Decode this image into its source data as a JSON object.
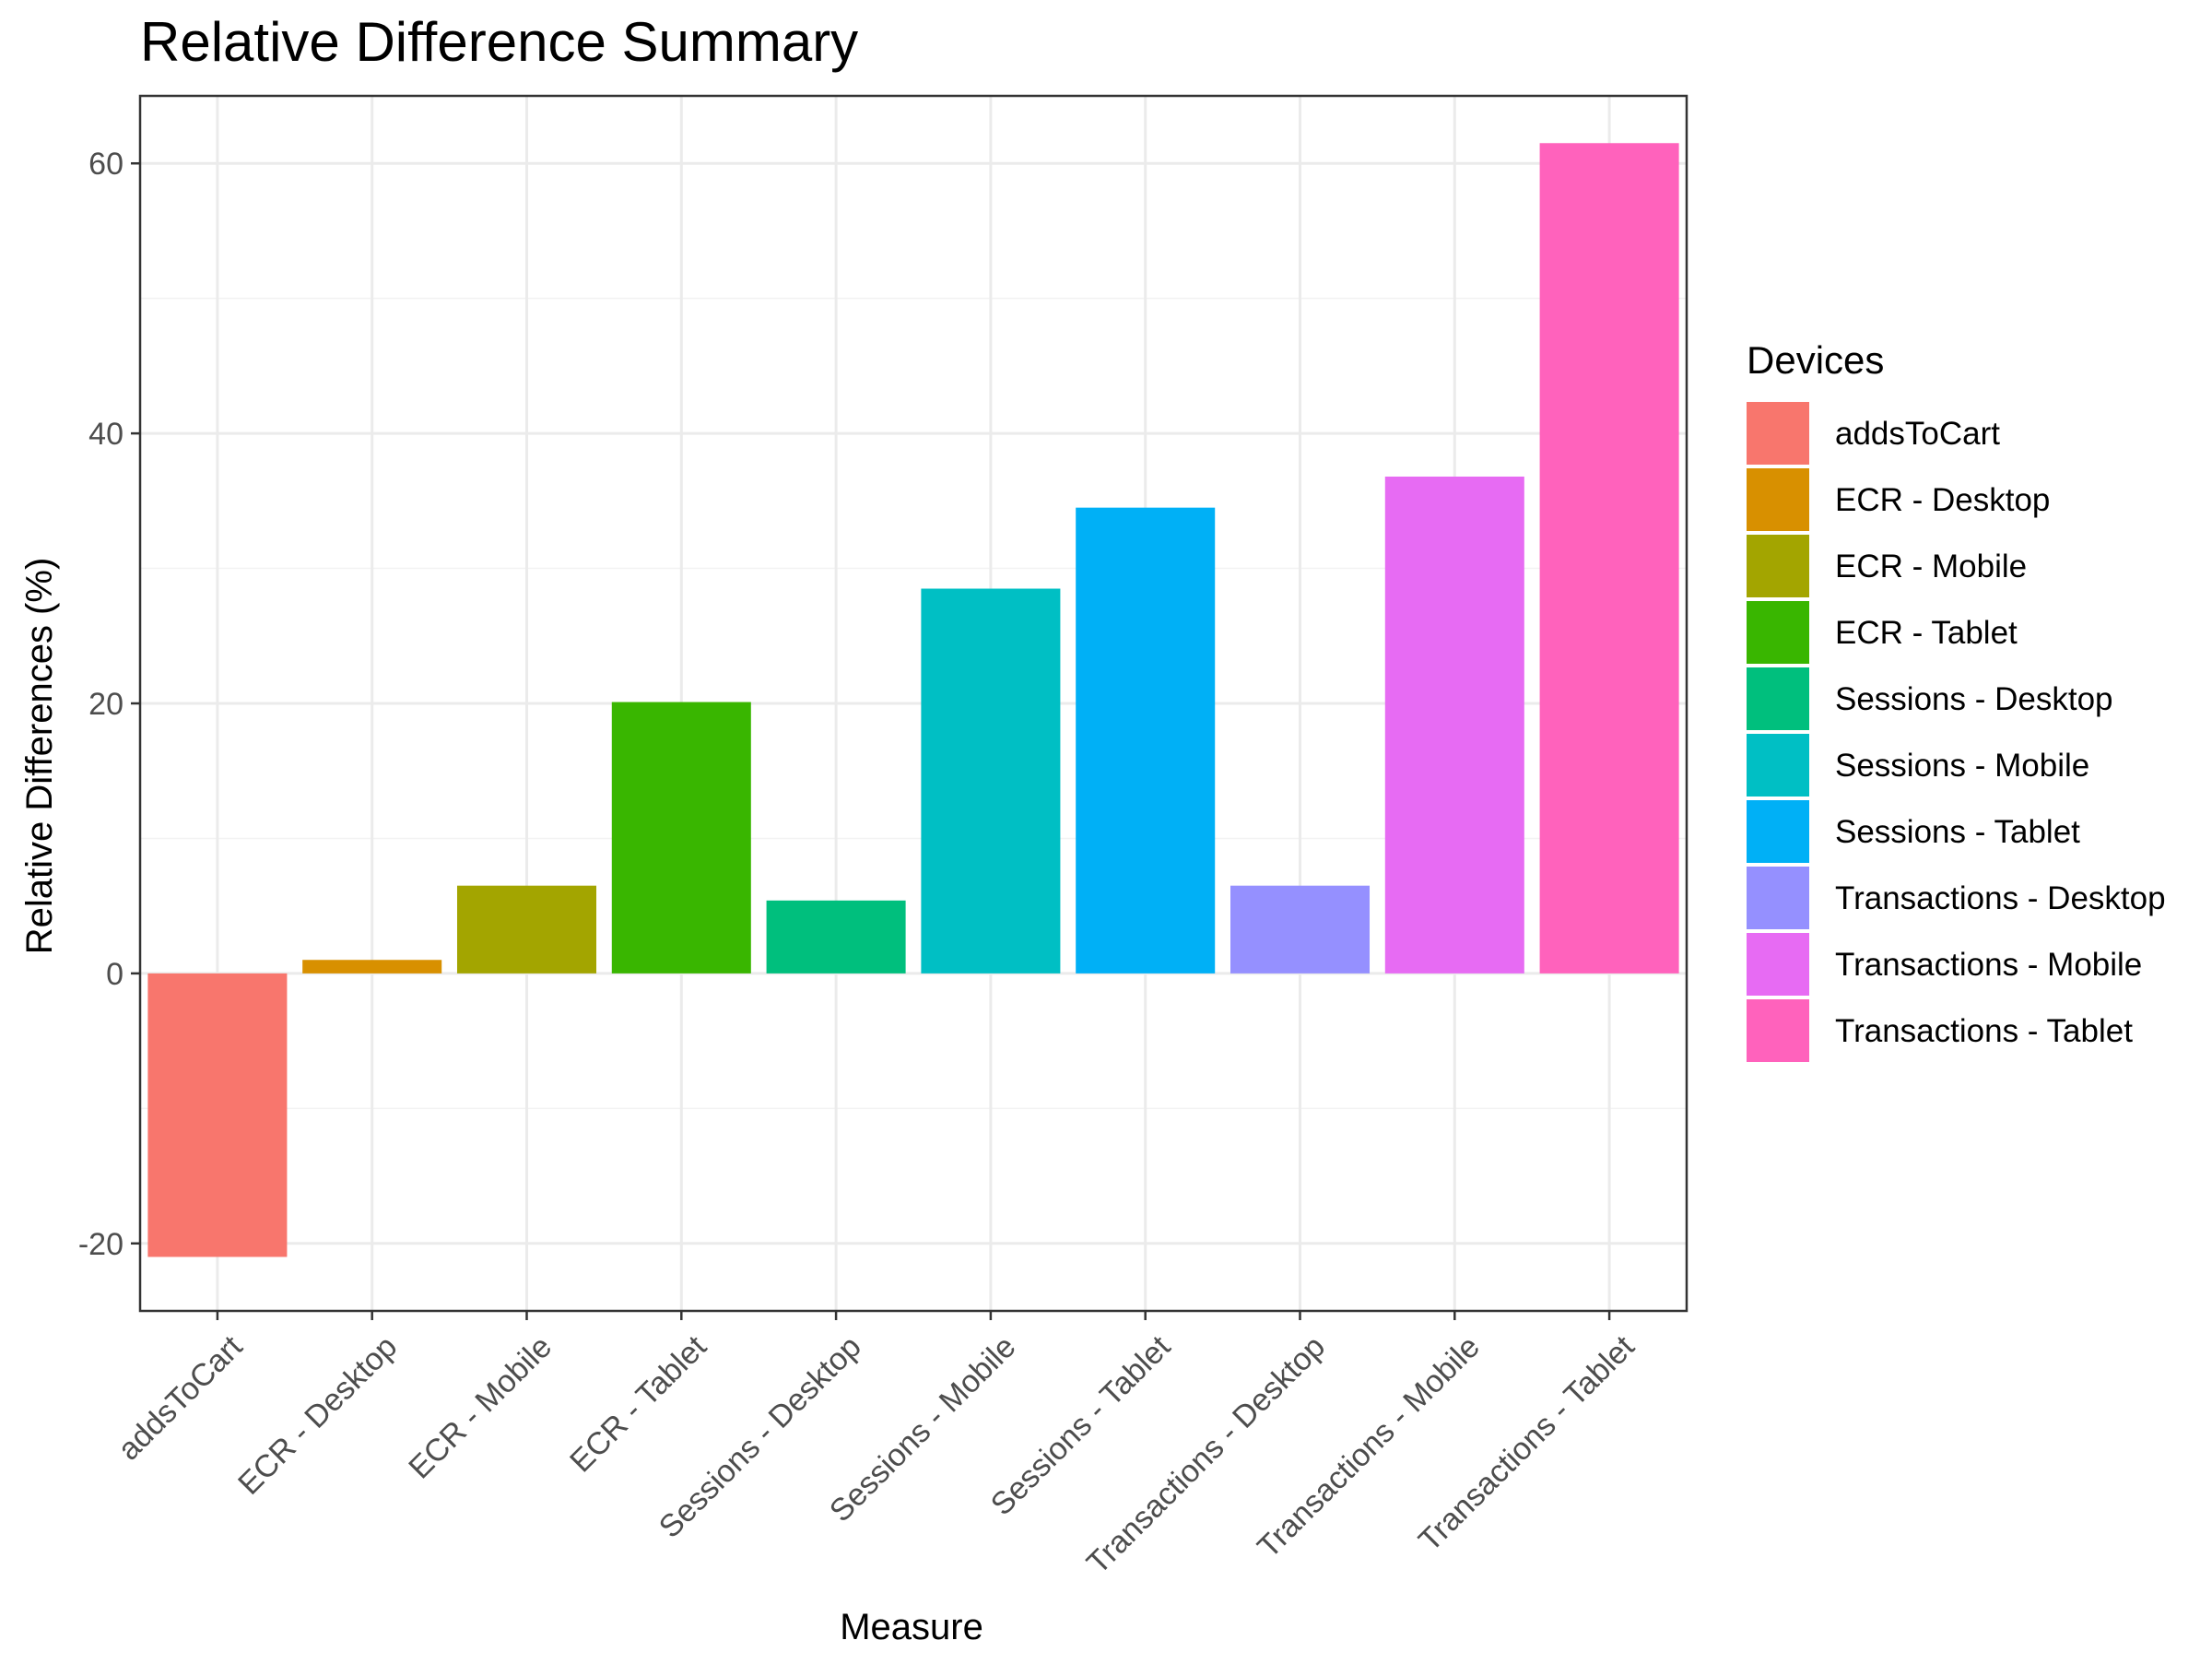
{
  "chart_data": {
    "type": "bar",
    "title": "Relative Difference Summary",
    "xlabel": "Measure",
    "ylabel": "Relative Differences (%)",
    "ylim": [
      -25,
      65
    ],
    "yticks": [
      -20,
      0,
      20,
      40,
      60
    ],
    "grid": true,
    "legend_title": "Devices",
    "legend_position": "right",
    "categories": [
      "addsToCart",
      "ECR - Desktop",
      "ECR - Mobile",
      "ECR - Tablet",
      "Sessions - Desktop",
      "Sessions - Mobile",
      "Sessions - Tablet",
      "Transactions - Desktop",
      "Transactions - Mobile",
      "Transactions - Tablet"
    ],
    "values": [
      -21.0,
      1.0,
      6.5,
      20.1,
      5.4,
      28.5,
      34.5,
      6.5,
      36.8,
      61.5
    ],
    "colors": [
      "#F8766D",
      "#D89000",
      "#A3A500",
      "#39B600",
      "#00BF7D",
      "#00BFC4",
      "#00B0F6",
      "#9590FF",
      "#E76BF3",
      "#FF62BC"
    ]
  }
}
